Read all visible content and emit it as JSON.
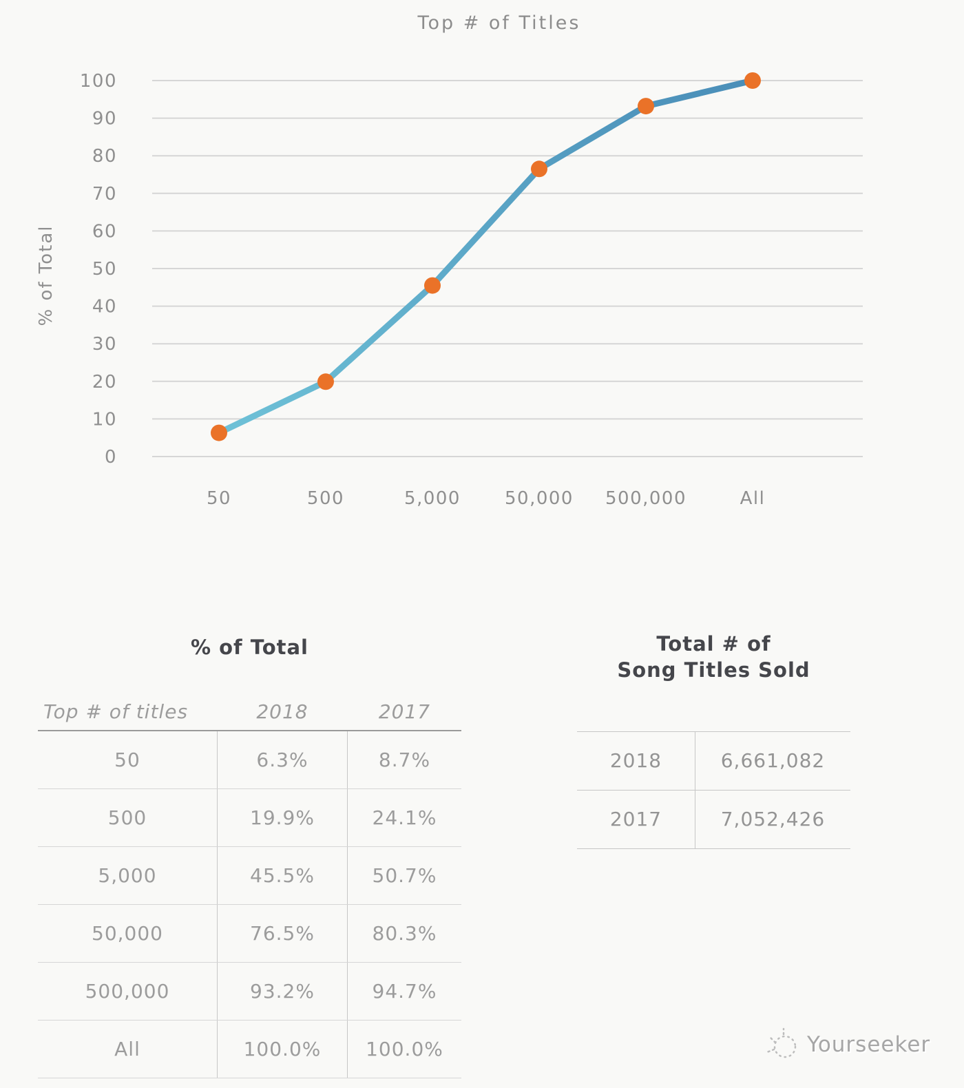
{
  "chart_data": {
    "type": "line",
    "title": "Top # of Titles",
    "ylabel": "% of Total",
    "xlabel": "",
    "categories": [
      "50",
      "500",
      "5,000",
      "50,000",
      "500,000",
      "All"
    ],
    "series": [
      {
        "name": "2018",
        "values": [
          6.3,
          19.9,
          45.5,
          76.5,
          93.2,
          100.0
        ]
      }
    ],
    "ylim": [
      0,
      100
    ],
    "ytick_step": 10,
    "grid": true,
    "legend": "none",
    "line_color_start": "#6ec1d7",
    "line_color_end": "#4a8eb8",
    "marker_color": "#ea7228",
    "grid_color": "#d6d6d6",
    "tick_color": "#8f8f8f"
  },
  "left_table": {
    "heading": "% of Total",
    "columns": [
      "Top # of titles",
      "2018",
      "2017"
    ],
    "rows": [
      [
        "50",
        "6.3%",
        "8.7%"
      ],
      [
        "500",
        "19.9%",
        "24.1%"
      ],
      [
        "5,000",
        "45.5%",
        "50.7%"
      ],
      [
        "50,000",
        "76.5%",
        "80.3%"
      ],
      [
        "500,000",
        "93.2%",
        "94.7%"
      ],
      [
        "All",
        "100.0%",
        "100.0%"
      ]
    ]
  },
  "right_table": {
    "heading_line1": "Total # of",
    "heading_line2": "Song Titles Sold",
    "rows": [
      [
        "2018",
        "6,661,082"
      ],
      [
        "2017",
        "7,052,426"
      ]
    ]
  },
  "watermark": {
    "label": "Yourseeker"
  }
}
